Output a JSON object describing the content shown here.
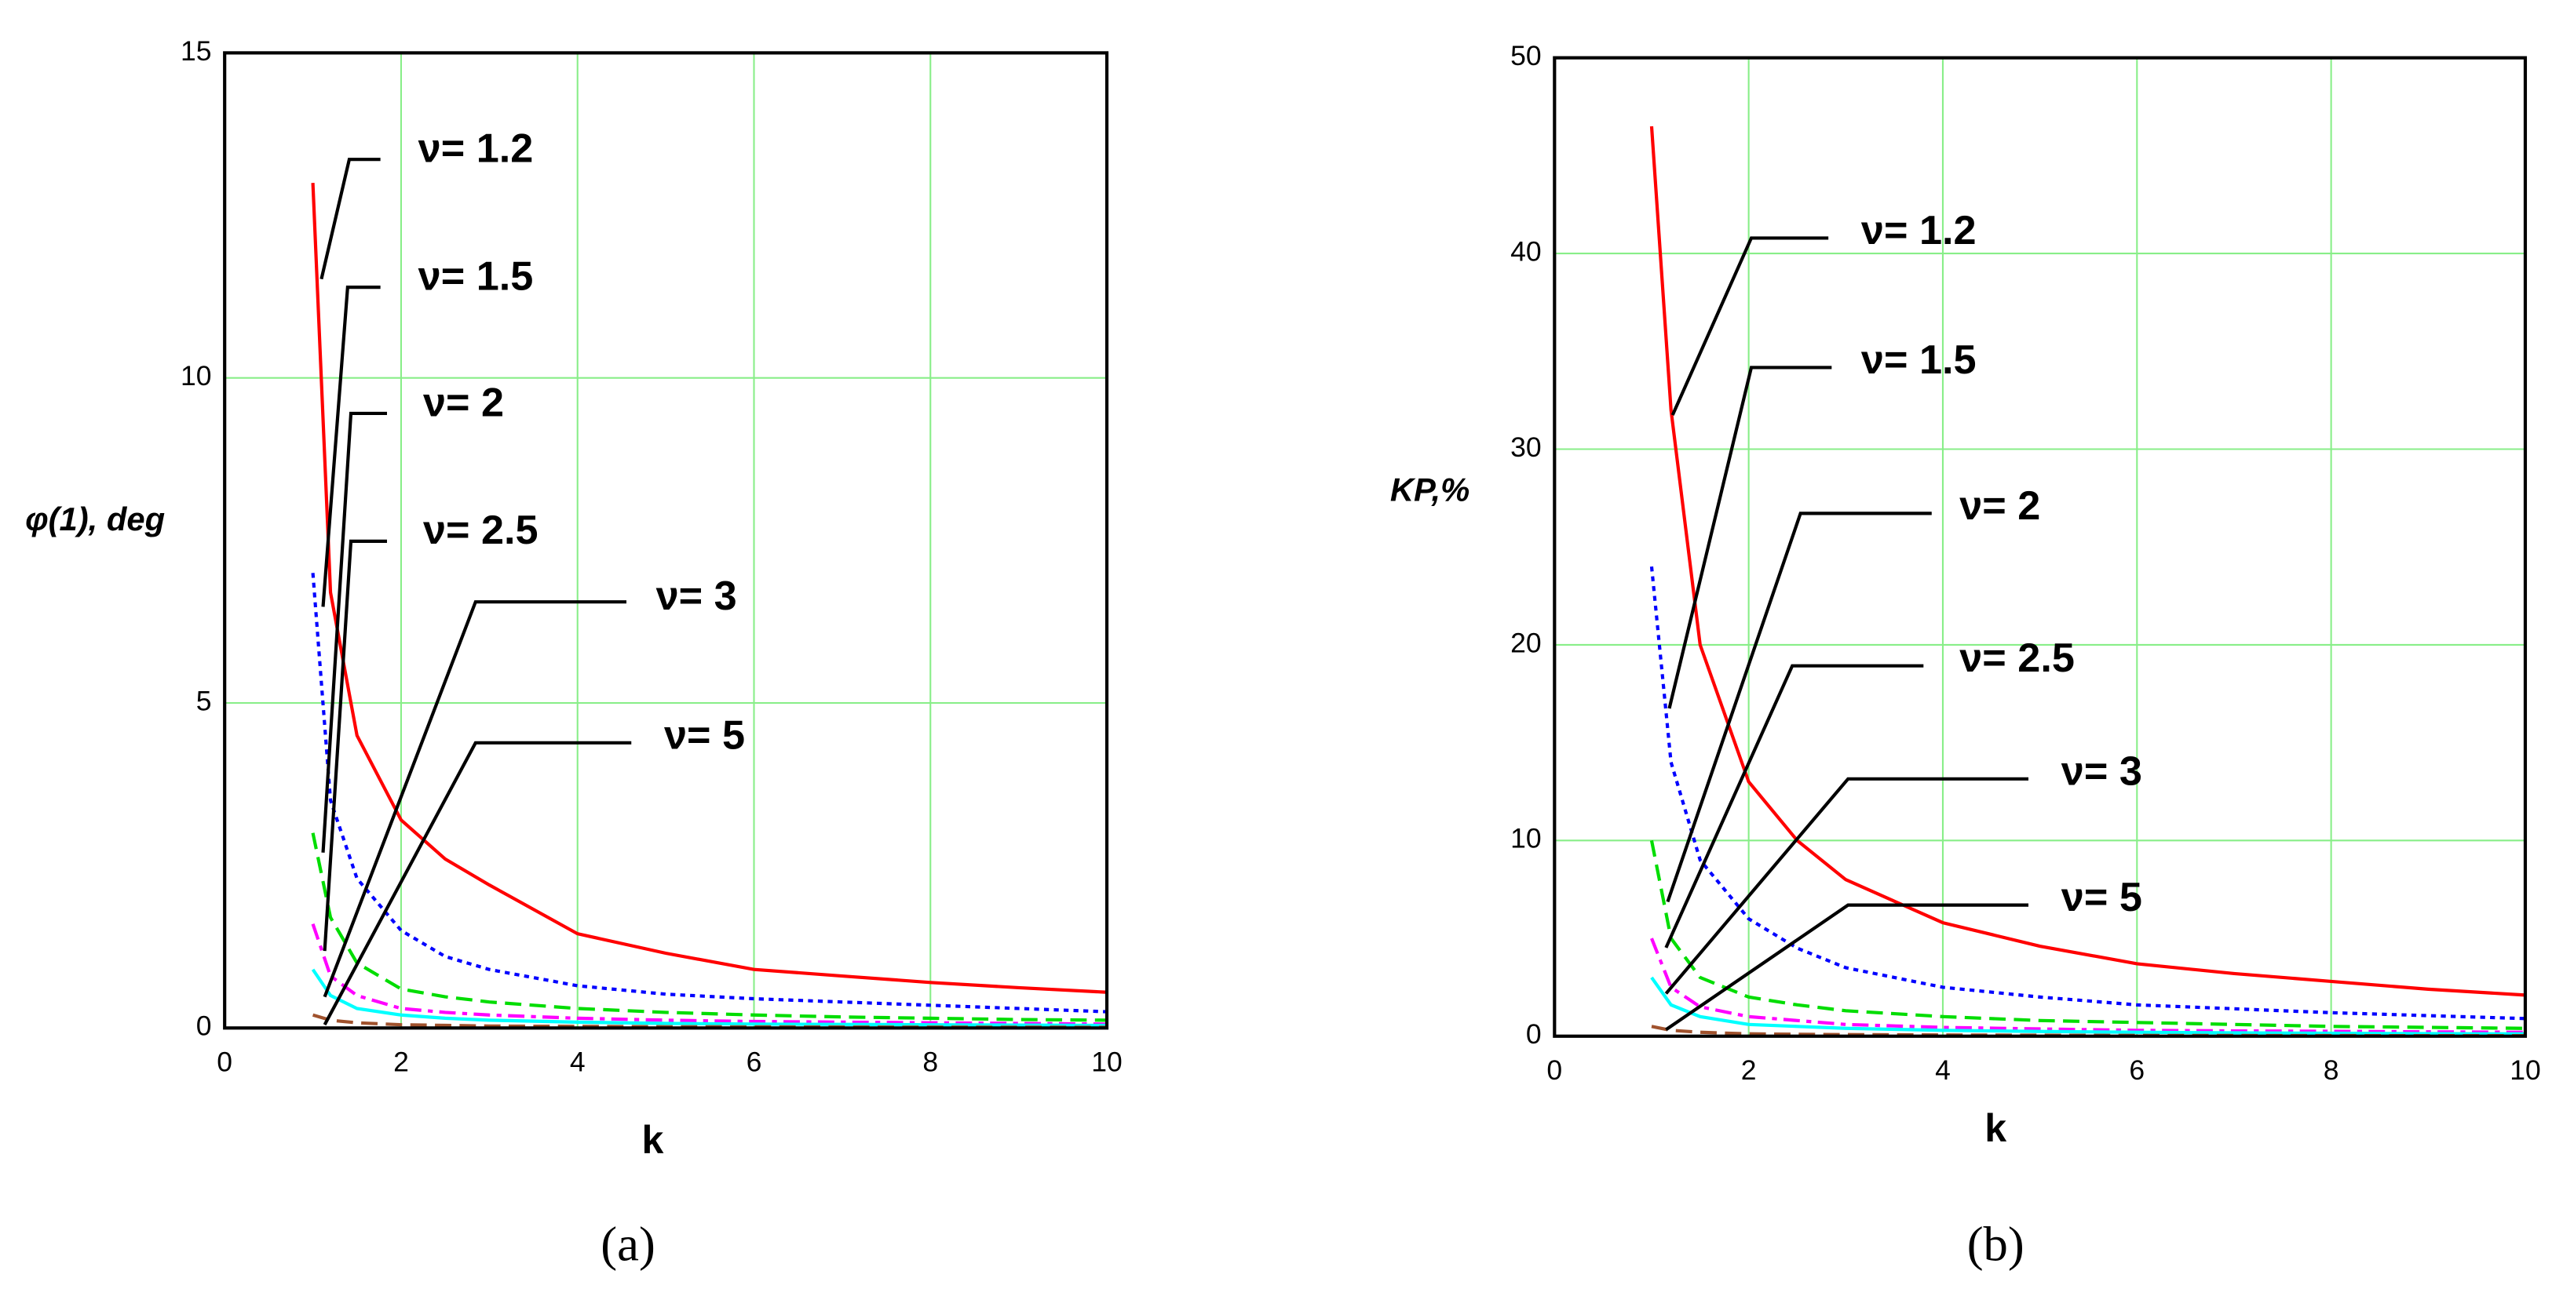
{
  "chart_data": [
    {
      "type": "line",
      "caption": "(a)",
      "x_label": "k",
      "y_label": "φ(1), deg",
      "xlim": [
        0,
        10
      ],
      "ylim": [
        0,
        15
      ],
      "xticks": [
        0,
        2,
        4,
        6,
        8,
        10
      ],
      "yticks": [
        0,
        5,
        10,
        15
      ],
      "grid": true,
      "x": [
        1,
        1.2,
        1.5,
        2,
        2.5,
        3,
        4,
        5,
        6,
        7,
        8,
        9,
        10
      ],
      "series": [
        {
          "name": "ν= 1.2",
          "color": "#ff0000",
          "style": "solid",
          "values": [
            13,
            6.7,
            4.5,
            3.2,
            2.6,
            2.2,
            1.45,
            1.15,
            0.9,
            0.8,
            0.7,
            0.62,
            0.55
          ]
        },
        {
          "name": "ν= 1.5",
          "color": "#0000ff",
          "style": "dotted",
          "values": [
            7,
            3.5,
            2.3,
            1.5,
            1.1,
            0.9,
            0.65,
            0.52,
            0.45,
            0.4,
            0.35,
            0.3,
            0.25
          ]
        },
        {
          "name": "ν= 2",
          "color": "#00dd00",
          "style": "dashed",
          "values": [
            3,
            1.7,
            1.0,
            0.6,
            0.48,
            0.4,
            0.3,
            0.24,
            0.2,
            0.17,
            0.15,
            0.13,
            0.12
          ]
        },
        {
          "name": "ν= 2.5",
          "color": "#ff00ff",
          "style": "dashdot",
          "values": [
            1.6,
            0.8,
            0.5,
            0.3,
            0.24,
            0.2,
            0.15,
            0.12,
            0.1,
            0.09,
            0.08,
            0.07,
            0.06
          ]
        },
        {
          "name": "ν= 3",
          "color": "#00ffff",
          "style": "solid",
          "values": [
            0.9,
            0.5,
            0.3,
            0.2,
            0.15,
            0.12,
            0.09,
            0.07,
            0.06,
            0.055,
            0.05,
            0.045,
            0.04
          ]
        },
        {
          "name": "ν= 5",
          "color": "#a0522d",
          "style": "dashed",
          "values": [
            0.2,
            0.12,
            0.08,
            0.05,
            0.04,
            0.03,
            0.025,
            0.02,
            0.018,
            0.015,
            0.013,
            0.012,
            0.01
          ]
        }
      ]
    },
    {
      "type": "line",
      "caption": "(b)",
      "x_label": "k",
      "y_label": "KP,%",
      "xlim": [
        0,
        10
      ],
      "ylim": [
        0,
        50
      ],
      "xticks": [
        0,
        2,
        4,
        6,
        8,
        10
      ],
      "yticks": [
        0,
        10,
        20,
        30,
        40,
        50
      ],
      "grid": true,
      "x": [
        1,
        1.2,
        1.5,
        2,
        2.5,
        3,
        4,
        5,
        6,
        7,
        8,
        9,
        10
      ],
      "series": [
        {
          "name": "ν= 1.2",
          "color": "#ff0000",
          "style": "solid",
          "values": [
            46.5,
            32,
            20,
            13,
            10,
            8,
            5.8,
            4.6,
            3.7,
            3.2,
            2.8,
            2.4,
            2.1
          ]
        },
        {
          "name": "ν= 1.5",
          "color": "#0000ff",
          "style": "dotted",
          "values": [
            24,
            14,
            9,
            6,
            4.5,
            3.5,
            2.5,
            2,
            1.6,
            1.4,
            1.2,
            1.05,
            0.9
          ]
        },
        {
          "name": "ν= 2",
          "color": "#00dd00",
          "style": "dashed",
          "values": [
            10,
            5,
            3,
            2,
            1.6,
            1.3,
            1,
            0.8,
            0.7,
            0.6,
            0.5,
            0.45,
            0.4
          ]
        },
        {
          "name": "ν= 2.5",
          "color": "#ff00ff",
          "style": "dashdot",
          "values": [
            5,
            2.5,
            1.5,
            1,
            0.8,
            0.6,
            0.45,
            0.37,
            0.3,
            0.27,
            0.25,
            0.22,
            0.2
          ]
        },
        {
          "name": "ν= 3",
          "color": "#00ffff",
          "style": "solid",
          "values": [
            3,
            1.6,
            1,
            0.6,
            0.5,
            0.4,
            0.3,
            0.24,
            0.2,
            0.17,
            0.15,
            0.13,
            0.12
          ]
        },
        {
          "name": "ν= 5",
          "color": "#a0522d",
          "style": "dashed",
          "values": [
            0.5,
            0.3,
            0.2,
            0.12,
            0.1,
            0.08,
            0.06,
            0.05,
            0.04,
            0.035,
            0.03,
            0.027,
            0.025
          ]
        }
      ]
    }
  ]
}
